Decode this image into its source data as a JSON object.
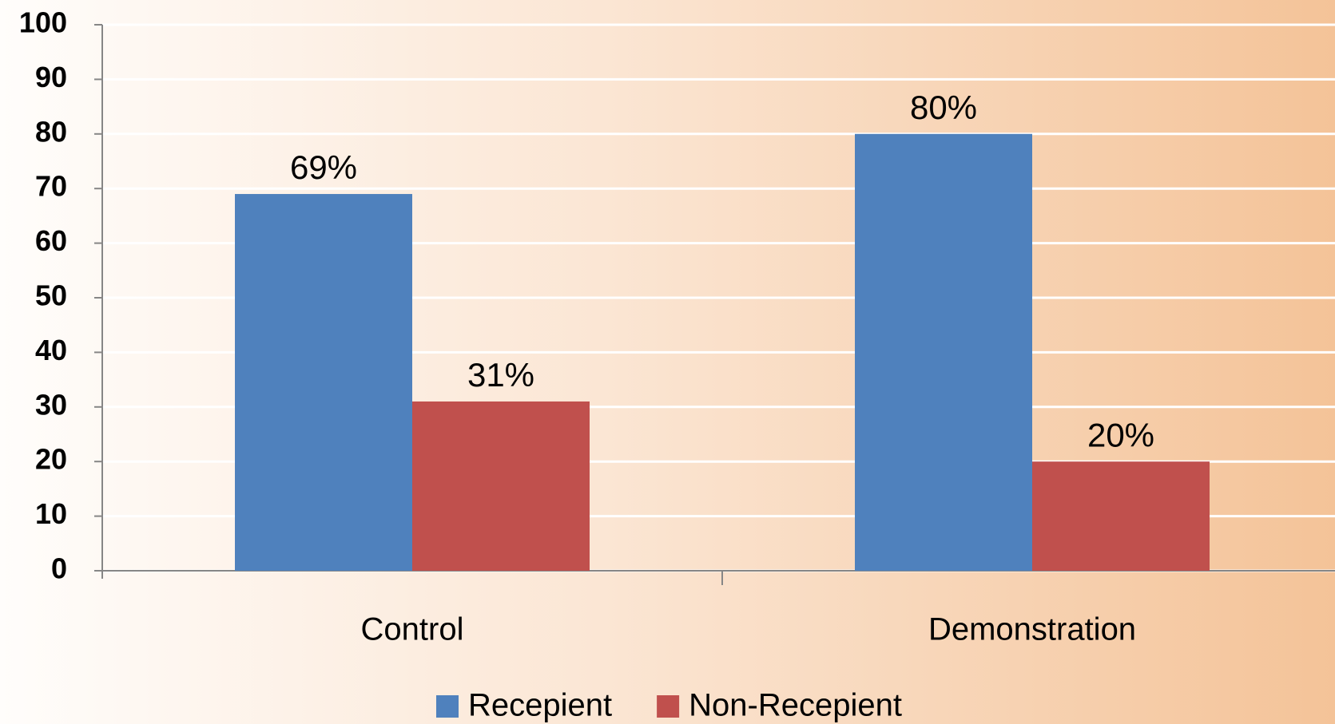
{
  "chart_data": {
    "type": "bar",
    "categories": [
      "Control",
      "Demonstration"
    ],
    "series": [
      {
        "name": "Recepient",
        "color": "#4f81bd",
        "values": [
          69,
          80
        ],
        "value_labels": [
          "69%",
          "80%"
        ]
      },
      {
        "name": "Non-Recepient",
        "color": "#c0504d",
        "values": [
          31,
          20
        ],
        "value_labels": [
          "31%",
          "20%"
        ]
      }
    ],
    "ylim": [
      0,
      100
    ],
    "yticks": [
      0,
      10,
      20,
      30,
      40,
      50,
      60,
      70,
      80,
      90,
      100
    ],
    "grid": true
  }
}
